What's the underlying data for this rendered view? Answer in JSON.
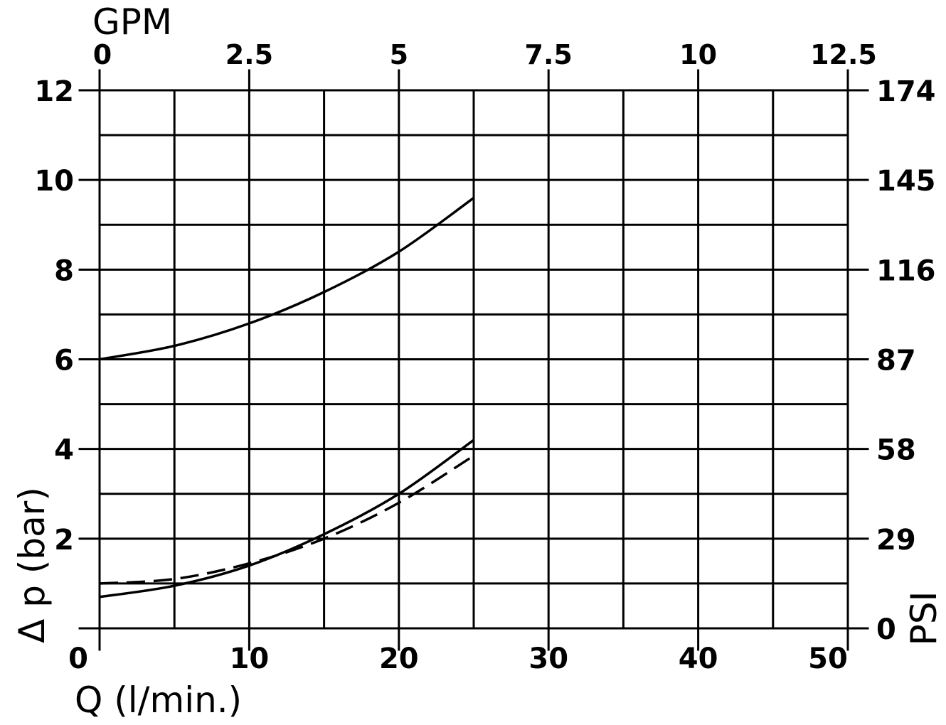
{
  "chart_data": {
    "type": "line",
    "title": "",
    "xlabel": "Q (l/min.)",
    "ylabel": "Δ p (bar)",
    "x_top_label": "GPM",
    "y_right_label": "PSI",
    "xlim": [
      0,
      50
    ],
    "ylim": [
      0,
      12
    ],
    "grid": true,
    "x_ticks": [
      0,
      10,
      20,
      30,
      40,
      50
    ],
    "x_tick_labels": [
      "0",
      "10",
      "20",
      "30",
      "40",
      "50"
    ],
    "x_top_ticks": [
      0,
      10,
      20,
      30,
      40,
      50
    ],
    "x_top_tick_labels": [
      "0",
      "2.5",
      "5",
      "7.5",
      "10",
      "12.5"
    ],
    "y_ticks": [
      0,
      2,
      4,
      6,
      8,
      10,
      12
    ],
    "y_tick_labels": [
      "",
      "2",
      "4",
      "6",
      "8",
      "10",
      "12"
    ],
    "y_right_tick_labels": [
      "0",
      "29",
      "58",
      "87",
      "116",
      "145",
      "174"
    ],
    "series": [
      {
        "style": "solid",
        "x": [
          0,
          5,
          10,
          15,
          20,
          25
        ],
        "y": [
          6.0,
          6.3,
          6.8,
          7.5,
          8.4,
          9.6
        ]
      },
      {
        "style": "solid",
        "x": [
          0,
          5,
          10,
          15,
          20,
          25
        ],
        "y": [
          0.7,
          0.95,
          1.4,
          2.1,
          3.0,
          4.2
        ]
      },
      {
        "style": "dashed",
        "x": [
          0,
          5,
          10,
          15,
          20,
          25
        ],
        "y": [
          1.0,
          1.1,
          1.45,
          2.0,
          2.8,
          3.85
        ]
      }
    ]
  }
}
